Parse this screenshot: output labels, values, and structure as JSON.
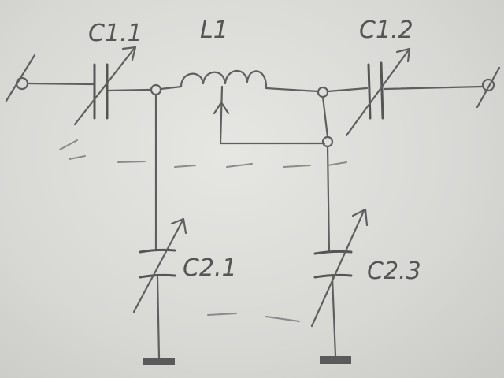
{
  "diagram": {
    "components": [
      {
        "id": "c11",
        "label": "C1.1"
      },
      {
        "id": "l1",
        "label": "L1"
      },
      {
        "id": "c12",
        "label": "C1.2"
      },
      {
        "id": "c21",
        "label": "C2.1"
      },
      {
        "id": "c23",
        "label": "C2.3"
      }
    ],
    "colors": {
      "ink": "#5f5f5f",
      "paper": "#e2e2df"
    }
  }
}
